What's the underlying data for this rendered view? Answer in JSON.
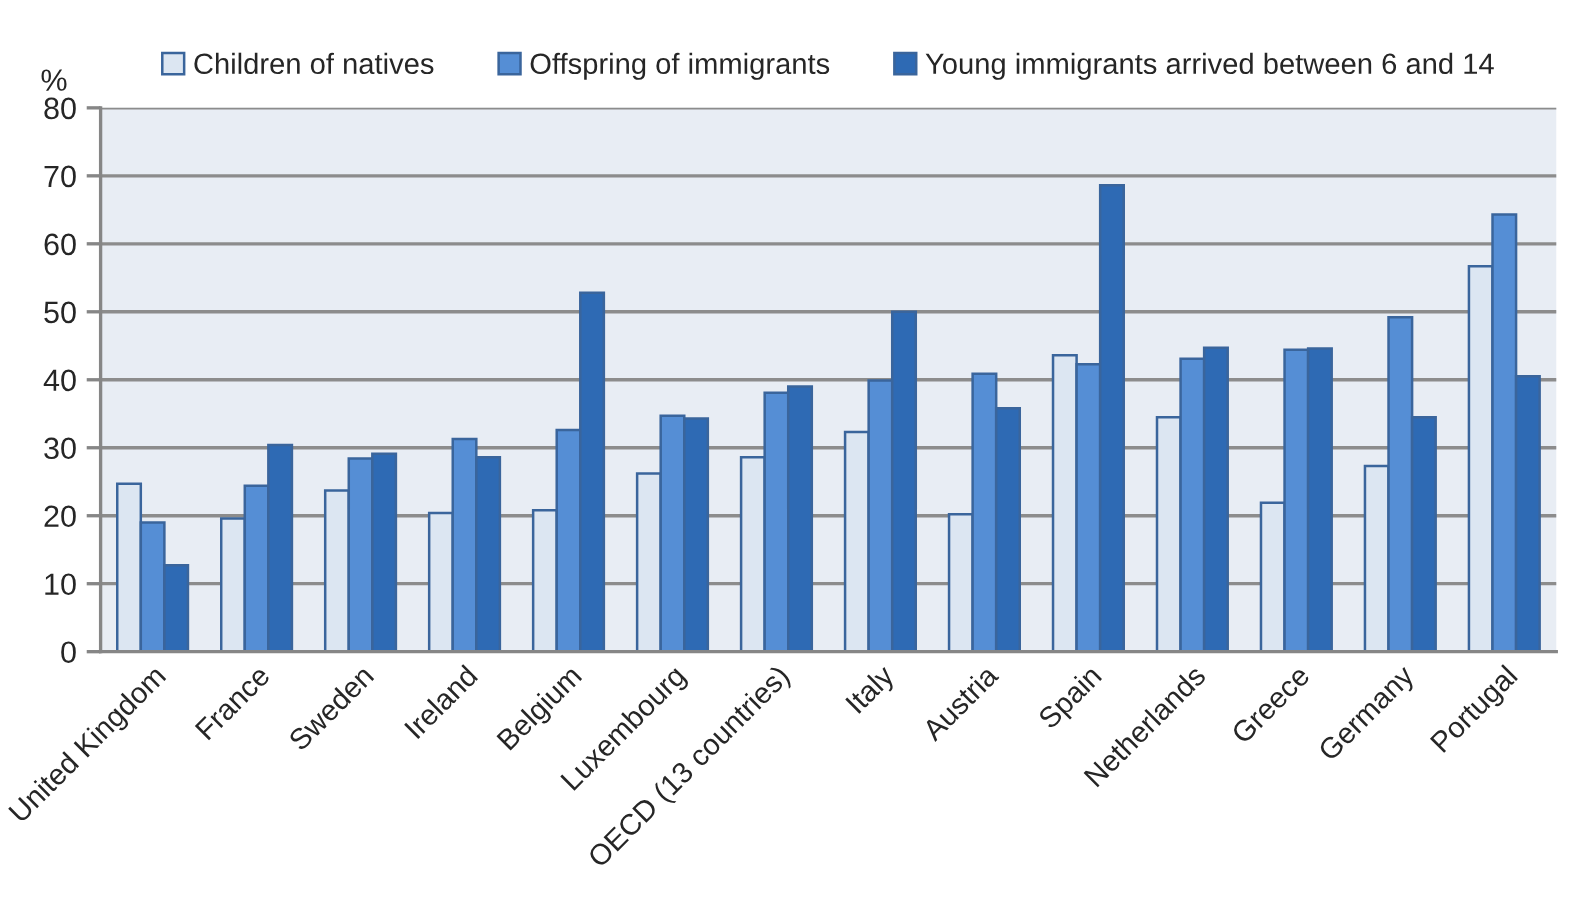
{
  "chart_data": {
    "type": "bar",
    "ylabel": "%",
    "categories": [
      "United Kingdom",
      "France",
      "Sweden",
      "Ireland",
      "Belgium",
      "Luxembourg",
      "OECD (13 countries)",
      "Italy",
      "Austria",
      "Spain",
      "Netherlands",
      "Greece",
      "Germany",
      "Portugal"
    ],
    "series": [
      {
        "name": "Children of natives",
        "color": "#dce6f2",
        "values": [
          24.7,
          19.6,
          23.7,
          20.4,
          20.8,
          26.2,
          28.6,
          32.3,
          20.2,
          43.6,
          34.5,
          21.9,
          27.3,
          56.7
        ]
      },
      {
        "name": "Offspring of immigrants",
        "color": "#558ed5",
        "values": [
          19.0,
          24.4,
          28.4,
          31.3,
          32.6,
          34.7,
          38.1,
          39.9,
          40.9,
          42.3,
          43.1,
          44.4,
          49.2,
          64.3
        ]
      },
      {
        "name": "Young immigrants arrived between 6 and 14",
        "color": "#2e6ab4",
        "values": [
          12.7,
          30.4,
          29.1,
          28.6,
          52.8,
          34.3,
          39.0,
          50.0,
          35.8,
          68.6,
          44.7,
          44.6,
          34.5,
          40.5
        ]
      }
    ],
    "ylim": [
      0,
      80
    ],
    "yticks": [
      0,
      10,
      20,
      30,
      40,
      50,
      60,
      70,
      80
    ],
    "grid": "y",
    "legend": "top"
  }
}
